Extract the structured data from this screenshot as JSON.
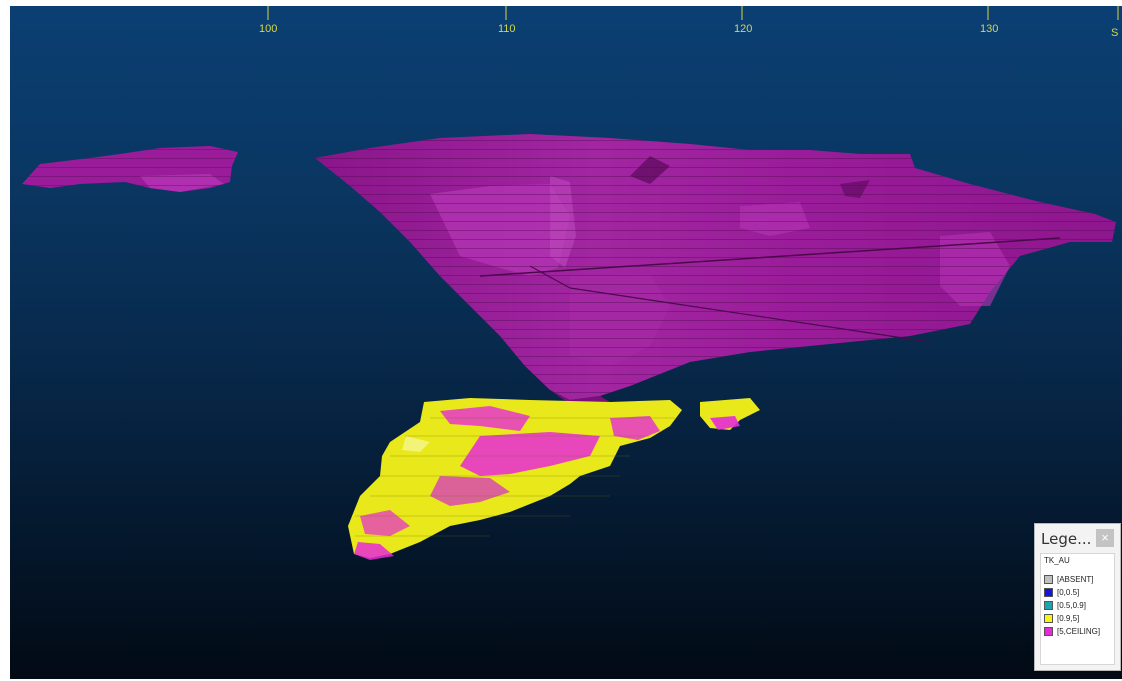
{
  "viewer": {
    "axis_ticks": [
      "100",
      "110",
      "120",
      "130",
      "S"
    ]
  },
  "legend": {
    "title": "Lege...",
    "close_label": "×",
    "attribute": "TK_AU",
    "items": [
      {
        "label": "[ABSENT]",
        "color": "#c0c0c0"
      },
      {
        "label": "[0,0.5]",
        "color": "#1515e0"
      },
      {
        "label": "[0.5,0.9]",
        "color": "#1aa6b0"
      },
      {
        "label": "[0.9,5]",
        "color": "#f5f51a"
      },
      {
        "label": "[5,CEILING]",
        "color": "#e62ad8"
      }
    ]
  },
  "colors": {
    "pit_shell": "#9a1c9a",
    "pit_shell_light": "#b02fb0",
    "block_yellow": "#f5f51a",
    "block_magenta": "#e62ad8",
    "axis_tick": "#d6d64a"
  }
}
